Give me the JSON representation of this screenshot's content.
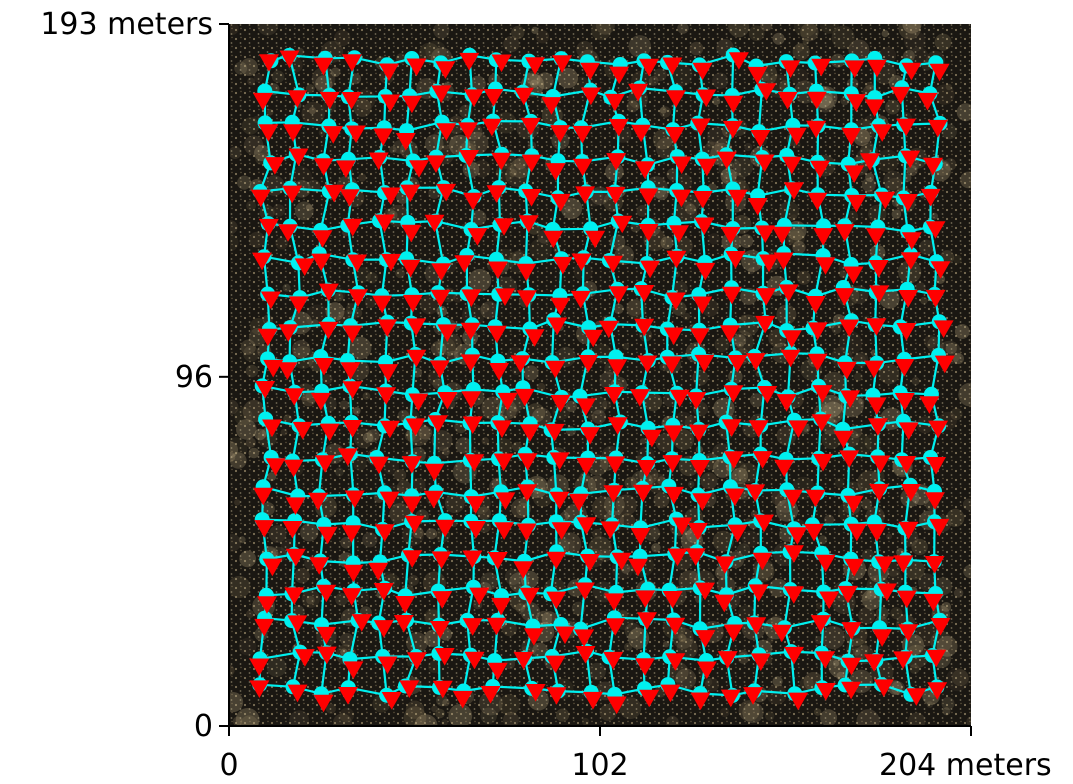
{
  "chart_data": {
    "type": "scatter",
    "title": "",
    "xlabel": "",
    "ylabel": "",
    "xlim": [
      0,
      204
    ],
    "ylim": [
      0,
      193
    ],
    "x_ticks": [
      {
        "value": 0,
        "label": "0"
      },
      {
        "value": 102,
        "label": "102"
      },
      {
        "value": 204,
        "label": "204 meters"
      }
    ],
    "y_ticks": [
      {
        "value": 0,
        "label": "0"
      },
      {
        "value": 96,
        "label": "96"
      },
      {
        "value": 193,
        "label": "193 meters"
      }
    ],
    "background": "dark satellite image with dense tree-crown texture",
    "grid": false,
    "legend": "none",
    "colors": {
      "background_image": "#15130f",
      "crown_texture": "#c8b48a",
      "trajectory": "#00f0f0",
      "prediction_marker": "#ff0000",
      "axis": "#000000"
    },
    "series": [
      {
        "marker": "circle",
        "color": "#00f0f0",
        "connected": true,
        "grid_x_range": [
          10,
          194
        ],
        "grid_y_range": [
          10,
          183
        ],
        "columns": 24,
        "rows": 20
      },
      {
        "marker": "triangle-down",
        "color": "#ff0000",
        "connected": false,
        "grid_x_range": [
          10,
          194
        ],
        "grid_y_range": [
          10,
          183
        ],
        "columns": 24,
        "rows": 20
      }
    ]
  }
}
